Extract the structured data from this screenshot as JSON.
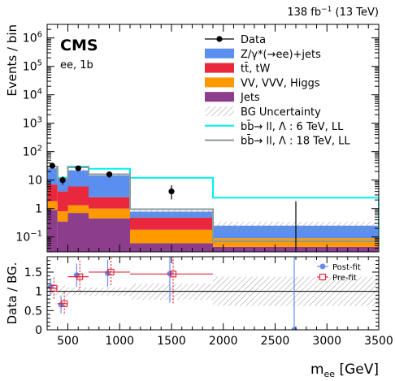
{
  "header": {
    "lumi": "138 fb",
    "lumi_sup": "−1",
    "energy": " (13 TeV)",
    "experiment": "CMS",
    "channel": "ee, 1b"
  },
  "chart_data": [
    {
      "panel": "main",
      "type": "stacked histogram",
      "ylabel": "Events / bin",
      "yscale": "log",
      "ylim": [
        0.03,
        3000000
      ],
      "xlim": [
        300,
        3500
      ],
      "x_ticks": [
        500,
        1000,
        1500,
        2000,
        2500,
        3000,
        3500
      ],
      "y_ticks": [
        {
          "v": 0.1,
          "b": "10",
          "e": "−1"
        },
        {
          "v": 1,
          "b": "1",
          "e": ""
        },
        {
          "v": 10,
          "b": "10",
          "e": ""
        },
        {
          "v": 100,
          "b": "10",
          "e": "2"
        },
        {
          "v": 1000,
          "b": "10",
          "e": "3"
        },
        {
          "v": 10000,
          "b": "10",
          "e": "4"
        },
        {
          "v": 100000,
          "b": "10",
          "e": "5"
        },
        {
          "v": 1000000,
          "b": "10",
          "e": "6"
        }
      ],
      "bin_edges": [
        300,
        400,
        500,
        700,
        1100,
        1900,
        3500
      ],
      "stack": [
        {
          "name": "Jets",
          "color": "#8c3d8c",
          "values": [
            0.9,
            0.35,
            0.7,
            0.45,
            0.06,
            0.045
          ]
        },
        {
          "name": "VV, VVV, Higgs",
          "color": "#ff9900",
          "values": [
            0.9,
            0.45,
            0.6,
            0.55,
            0.12,
            0.045
          ]
        },
        {
          "name": "tt̄, tW",
          "color": "#e8283c",
          "values": [
            5.2,
            3.2,
            4.7,
            1.5,
            0.3,
            0.0
          ]
        },
        {
          "name": "Z/γ*(→ee)+jets",
          "color": "#5a8ff0",
          "values": [
            19,
            7,
            16,
            12,
            0.3,
            0.16
          ]
        }
      ],
      "data": {
        "name": "Data",
        "x": [
          350,
          450,
          600,
          900,
          1500,
          2700
        ],
        "y": [
          32,
          10,
          26,
          16,
          4,
          0
        ],
        "yerr_up": [
          6,
          3.5,
          5,
          4,
          2.6,
          1.8
        ],
        "yerr_down": [
          5.6,
          3.1,
          5,
          4,
          1.9,
          0
        ]
      },
      "signals": [
        {
          "name": "bb̄→ ll,   Λ : 6 TeV, LL",
          "color": "#00f0f0",
          "values": [
            30,
            12,
            30,
            25,
            12,
            2.4
          ]
        },
        {
          "name": "bb̄→ ll,   Λ : 18 TeV, LL",
          "color": "#8c9a9a",
          "values": [
            30,
            11,
            28,
            16,
            0.95,
            0.07
          ]
        }
      ],
      "legend": {
        "placement": "top-right",
        "entries": [
          "Data",
          "Z/γ*(→ee)+jets",
          "tt̄, tW",
          "VV, VVV, Higgs",
          "Jets",
          "BG Uncertainty",
          "bb̄→ ll,   Λ : 6 TeV, LL",
          "bb̄→ ll,   Λ : 18 TeV, LL"
        ]
      }
    },
    {
      "panel": "ratio",
      "type": "scatter",
      "ylabel": "Data / BG.",
      "xlabel": "m",
      "xlabel_sub": "ee",
      "xlabel_unit": " [GeV]",
      "ylim": [
        0,
        1.9
      ],
      "xlim": [
        300,
        3500
      ],
      "y_ticks": [
        0,
        0.5,
        1,
        1.5
      ],
      "x_ticks": [
        500,
        1000,
        1500,
        2000,
        2500,
        3000,
        3500
      ],
      "uncertainty_band": [
        {
          "lo": 0.9,
          "hi": 1.1
        },
        {
          "lo": 0.85,
          "hi": 1.15
        },
        {
          "lo": 0.9,
          "hi": 1.1
        },
        {
          "lo": 0.88,
          "hi": 1.1
        },
        {
          "lo": 0.78,
          "hi": 1.2
        },
        {
          "lo": 0.62,
          "hi": 1.38
        }
      ],
      "series": [
        {
          "name": "Post-fit",
          "color": "#6a8cf0",
          "x": [
            350,
            450,
            600,
            900,
            1500,
            2700
          ],
          "y": [
            1.12,
            0.65,
            1.42,
            1.47,
            1.46,
            0.0
          ],
          "yerr": [
            0.22,
            0.22,
            0.3,
            0.35,
            0.75,
            3.0
          ]
        },
        {
          "name": "Pre-fit",
          "color": "#e8283c",
          "x": [
            350,
            450,
            600,
            900,
            1500
          ],
          "y": [
            1.08,
            0.68,
            1.38,
            1.5,
            1.45
          ],
          "yerr": [
            0.28,
            0.3,
            0.42,
            0.38,
            0.8
          ]
        }
      ],
      "legend": {
        "placement": "top-right",
        "entries": [
          "Post-fit",
          "Pre-fit"
        ]
      }
    }
  ]
}
